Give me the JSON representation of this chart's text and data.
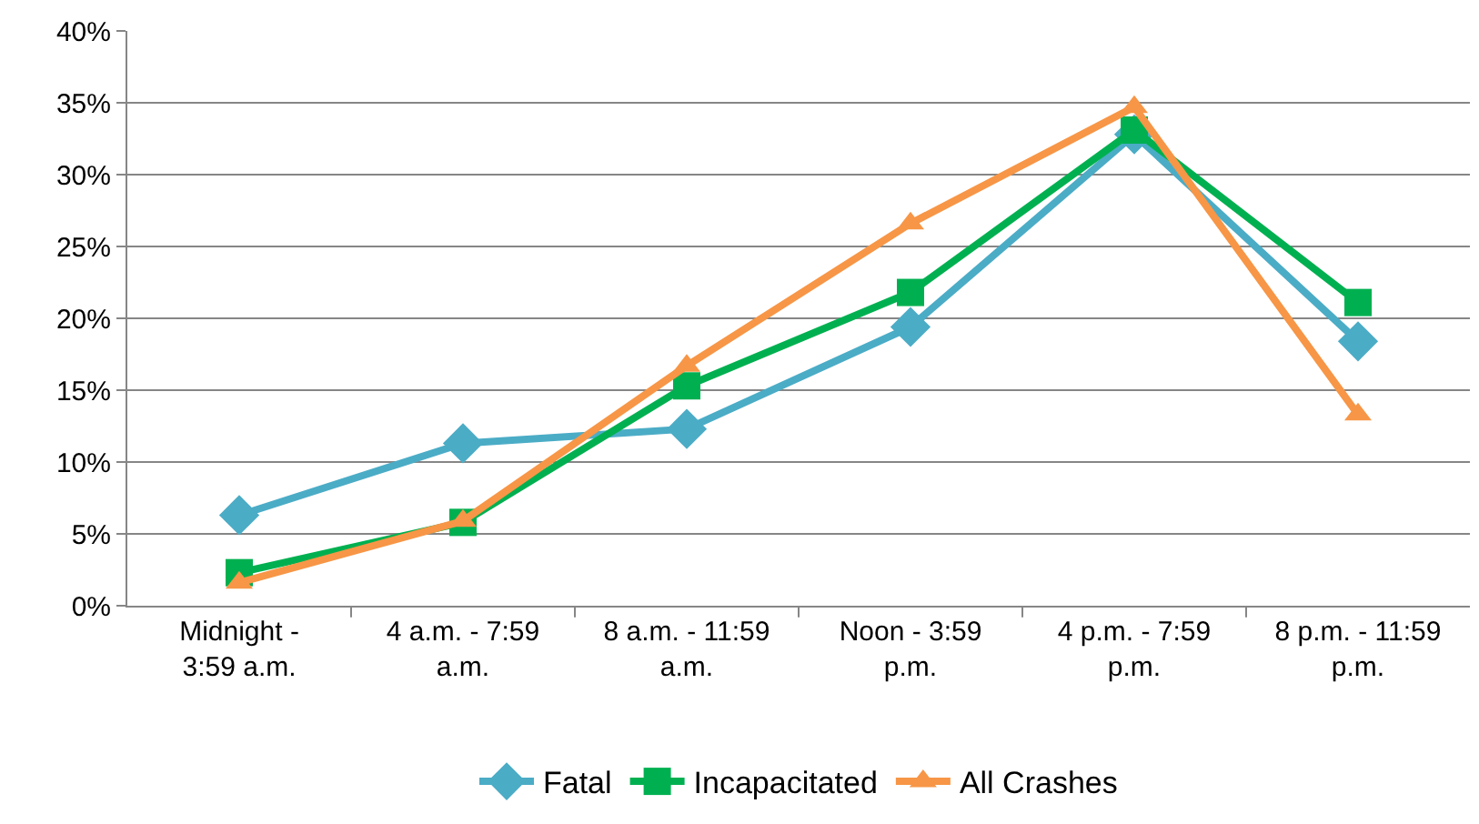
{
  "chart_data": {
    "type": "line",
    "categories": [
      "Midnight - 3:59 a.m.",
      "4 a.m. - 7:59 a.m.",
      "8 a.m. - 11:59 a.m.",
      "Noon - 3:59 p.m.",
      "4 p.m. - 7:59 p.m.",
      "8 p.m. - 11:59 p.m."
    ],
    "series": [
      {
        "name": "Fatal",
        "color": "#4bacc6",
        "marker": "diamond",
        "values": [
          6.3,
          11.3,
          12.3,
          19.4,
          32.8,
          18.4
        ]
      },
      {
        "name": "Incapacitated",
        "color": "#00b050",
        "marker": "square",
        "values": [
          2.3,
          5.8,
          15.3,
          21.8,
          33.1,
          21.1
        ]
      },
      {
        "name": "All Crashes",
        "color": "#f79646",
        "marker": "triangle",
        "values": [
          1.6,
          5.9,
          16.7,
          26.6,
          34.7,
          13.3
        ]
      }
    ],
    "ylim": [
      0,
      40
    ],
    "yticks": [
      {
        "value": 0,
        "label": "0%"
      },
      {
        "value": 5,
        "label": "5%"
      },
      {
        "value": 10,
        "label": "10%"
      },
      {
        "value": 15,
        "label": "15%"
      },
      {
        "value": 20,
        "label": "20%"
      },
      {
        "value": 25,
        "label": "25%"
      },
      {
        "value": 30,
        "label": "30%"
      },
      {
        "value": 35,
        "label": "35%"
      },
      {
        "value": 40,
        "label": "40%"
      }
    ],
    "grid": "y",
    "legend": "bottom",
    "line_style": "solid"
  }
}
